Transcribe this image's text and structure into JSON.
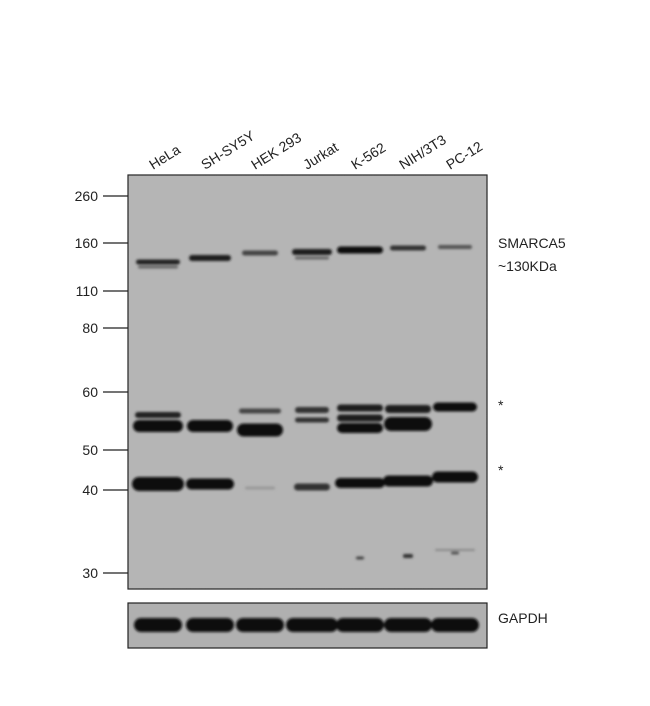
{
  "lanes": [
    "HeLa",
    "SH-SY5Y",
    "HEK 293",
    "Jurkat",
    "K-562",
    "NIH/3T3",
    "PC-12"
  ],
  "markers": [
    260,
    160,
    110,
    80,
    60,
    50,
    40,
    30
  ],
  "annotations": {
    "target": "SMARCA5",
    "size": "~130KDa",
    "star_upper": "*",
    "star_lower": "*",
    "loading_control": "GAPDH"
  }
}
